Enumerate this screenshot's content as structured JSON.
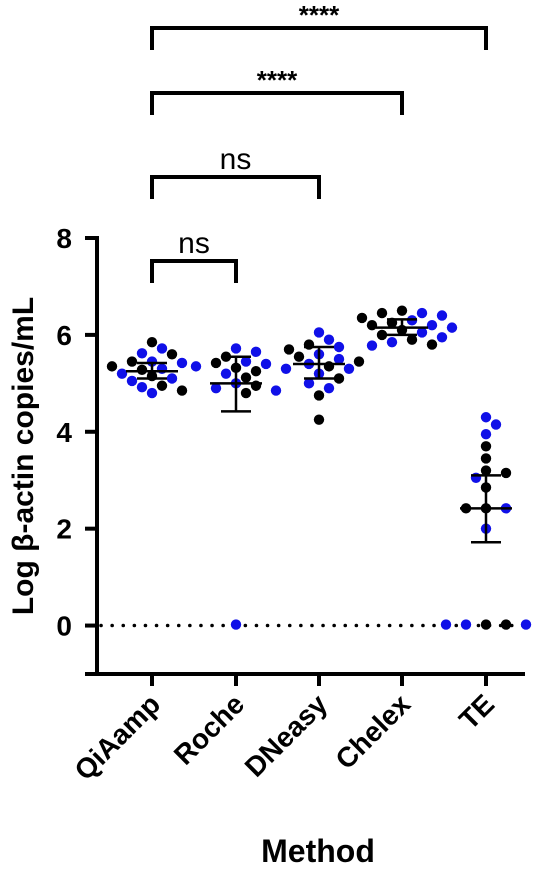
{
  "chart_data": {
    "type": "scatter",
    "xlabel": "Method",
    "ylabel": "Log β-actin copies/mL",
    "ylim": [
      -1,
      8
    ],
    "yticks": [
      0,
      2,
      4,
      6,
      8
    ],
    "categories": [
      "QiAamp",
      "Roche",
      "DNeasy",
      "Chelex",
      "TE"
    ],
    "reference_line": 0,
    "colors": {
      "series_a": "#000000",
      "series_b": "#1010e8",
      "error_bar": "#000000"
    },
    "groups": [
      {
        "category": "QiAamp",
        "mean": 5.25,
        "err_low": 5.1,
        "err_high": 5.42,
        "points": [
          {
            "y": 5.85,
            "c": "k"
          },
          {
            "y": 5.72,
            "c": "b"
          },
          {
            "y": 5.6,
            "c": "k"
          },
          {
            "y": 5.62,
            "c": "b"
          },
          {
            "y": 5.45,
            "c": "b"
          },
          {
            "y": 5.45,
            "c": "k"
          },
          {
            "y": 5.42,
            "c": "b"
          },
          {
            "y": 5.35,
            "c": "k"
          },
          {
            "y": 5.3,
            "c": "b"
          },
          {
            "y": 5.28,
            "c": "k"
          },
          {
            "y": 5.2,
            "c": "b"
          },
          {
            "y": 5.15,
            "c": "k"
          },
          {
            "y": 5.1,
            "c": "b"
          },
          {
            "y": 5.05,
            "c": "b"
          },
          {
            "y": 4.95,
            "c": "k"
          },
          {
            "y": 4.92,
            "c": "b"
          },
          {
            "y": 4.85,
            "c": "k"
          },
          {
            "y": 4.8,
            "c": "b"
          }
        ]
      },
      {
        "category": "Roche",
        "mean": 5.0,
        "err_low": 4.42,
        "err_high": 5.55,
        "points": [
          {
            "y": 5.72,
            "c": "b"
          },
          {
            "y": 5.65,
            "c": "b"
          },
          {
            "y": 5.55,
            "c": "k"
          },
          {
            "y": 5.45,
            "c": "b"
          },
          {
            "y": 5.42,
            "c": "k"
          },
          {
            "y": 5.4,
            "c": "b"
          },
          {
            "y": 5.35,
            "c": "b"
          },
          {
            "y": 5.32,
            "c": "k"
          },
          {
            "y": 5.3,
            "c": "b"
          },
          {
            "y": 5.25,
            "c": "k"
          },
          {
            "y": 5.2,
            "c": "b"
          },
          {
            "y": 5.12,
            "c": "k"
          },
          {
            "y": 5.0,
            "c": "b"
          },
          {
            "y": 4.95,
            "c": "k"
          },
          {
            "y": 4.9,
            "c": "b"
          },
          {
            "y": 4.85,
            "c": "b"
          },
          {
            "y": 4.8,
            "c": "k"
          },
          {
            "y": 0.02,
            "c": "b"
          }
        ]
      },
      {
        "category": "DNeasy",
        "mean": 5.4,
        "err_low": 5.1,
        "err_high": 5.75,
        "points": [
          {
            "y": 6.05,
            "c": "b"
          },
          {
            "y": 5.9,
            "c": "b"
          },
          {
            "y": 5.8,
            "c": "k"
          },
          {
            "y": 5.75,
            "c": "b"
          },
          {
            "y": 5.7,
            "c": "k"
          },
          {
            "y": 5.6,
            "c": "b"
          },
          {
            "y": 5.55,
            "c": "k"
          },
          {
            "y": 5.5,
            "c": "b"
          },
          {
            "y": 5.45,
            "c": "k"
          },
          {
            "y": 5.4,
            "c": "b"
          },
          {
            "y": 5.35,
            "c": "k"
          },
          {
            "y": 5.3,
            "c": "b"
          },
          {
            "y": 5.2,
            "c": "b"
          },
          {
            "y": 5.1,
            "c": "k"
          },
          {
            "y": 5.0,
            "c": "b"
          },
          {
            "y": 4.9,
            "c": "b"
          },
          {
            "y": 4.75,
            "c": "k"
          },
          {
            "y": 4.25,
            "c": "k"
          }
        ]
      },
      {
        "category": "Chelex",
        "mean": 6.15,
        "err_low": 6.0,
        "err_high": 6.32,
        "points": [
          {
            "y": 6.5,
            "c": "k"
          },
          {
            "y": 6.45,
            "c": "b"
          },
          {
            "y": 6.45,
            "c": "k"
          },
          {
            "y": 6.4,
            "c": "b"
          },
          {
            "y": 6.35,
            "c": "k"
          },
          {
            "y": 6.3,
            "c": "b"
          },
          {
            "y": 6.25,
            "c": "k"
          },
          {
            "y": 6.2,
            "c": "b"
          },
          {
            "y": 6.2,
            "c": "k"
          },
          {
            "y": 6.15,
            "c": "b"
          },
          {
            "y": 6.1,
            "c": "k"
          },
          {
            "y": 6.05,
            "c": "b"
          },
          {
            "y": 6.0,
            "c": "k"
          },
          {
            "y": 5.95,
            "c": "b"
          },
          {
            "y": 5.9,
            "c": "k"
          },
          {
            "y": 5.85,
            "c": "b"
          },
          {
            "y": 5.8,
            "c": "k"
          },
          {
            "y": 5.78,
            "c": "b"
          }
        ]
      },
      {
        "category": "TE",
        "mean": 2.42,
        "err_low": 1.72,
        "err_high": 3.1,
        "points": [
          {
            "y": 4.3,
            "c": "b"
          },
          {
            "y": 4.15,
            "c": "b"
          },
          {
            "y": 3.95,
            "c": "b"
          },
          {
            "y": 3.7,
            "c": "k"
          },
          {
            "y": 3.45,
            "c": "k"
          },
          {
            "y": 3.2,
            "c": "k"
          },
          {
            "y": 3.15,
            "c": "k"
          },
          {
            "y": 3.05,
            "c": "b"
          },
          {
            "y": 2.85,
            "c": "k"
          },
          {
            "y": 2.42,
            "c": "k"
          },
          {
            "y": 2.42,
            "c": "b"
          },
          {
            "y": 2.42,
            "c": "k"
          },
          {
            "y": 2.0,
            "c": "b"
          },
          {
            "y": 0.02,
            "c": "k"
          },
          {
            "y": 0.02,
            "c": "k"
          },
          {
            "y": 0.02,
            "c": "b"
          },
          {
            "y": 0.02,
            "c": "b"
          },
          {
            "y": 0.02,
            "c": "b"
          }
        ]
      }
    ],
    "comparisons": [
      {
        "from": "QiAamp",
        "to": "Roche",
        "label": "ns"
      },
      {
        "from": "QiAamp",
        "to": "DNeasy",
        "label": "ns"
      },
      {
        "from": "QiAamp",
        "to": "Chelex",
        "label": "****"
      },
      {
        "from": "QiAamp",
        "to": "TE",
        "label": "****"
      }
    ]
  }
}
